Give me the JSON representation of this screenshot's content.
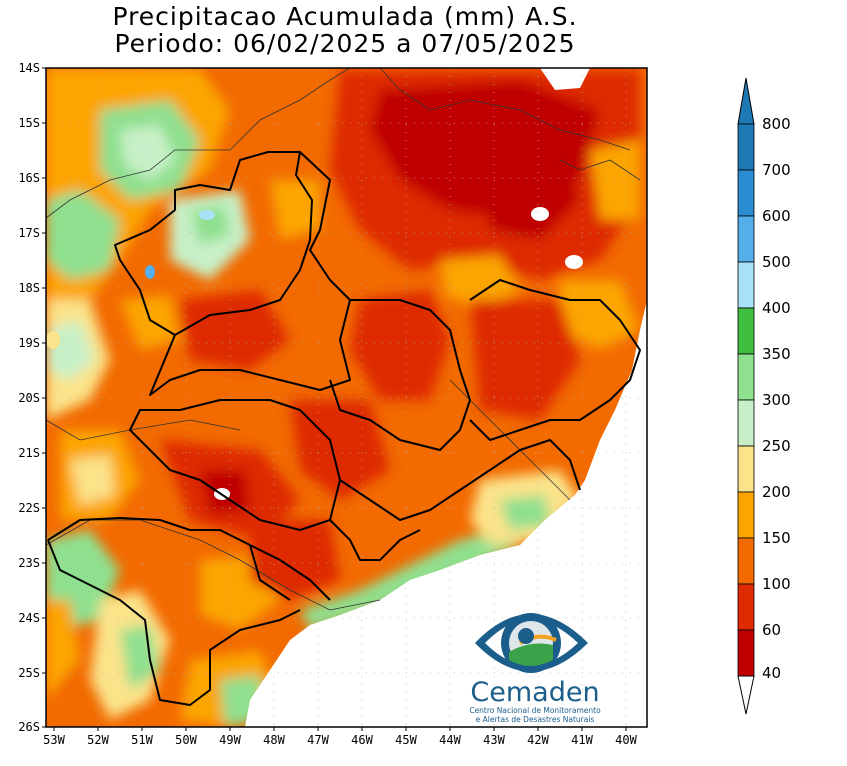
{
  "title": {
    "line1": "Precipitacao Acumulada (mm) A.S.",
    "line2": "Periodo: 06/02/2025 a 07/05/2025"
  },
  "axes": {
    "lat_labels": [
      "14S",
      "15S",
      "16S",
      "17S",
      "18S",
      "19S",
      "20S",
      "21S",
      "22S",
      "23S",
      "24S",
      "25S",
      "26S"
    ],
    "lon_labels": [
      "53W",
      "52W",
      "51W",
      "50W",
      "49W",
      "48W",
      "47W",
      "46W",
      "45W",
      "44W",
      "43W",
      "42W",
      "41W",
      "40W"
    ]
  },
  "legend": {
    "levels": [
      "800",
      "700",
      "600",
      "500",
      "400",
      "350",
      "300",
      "250",
      "200",
      "150",
      "100",
      "60",
      "40"
    ],
    "colors": [
      "#1e78b4",
      "#2a8dd2",
      "#54aeea",
      "#a9e2f8",
      "#3fbe3f",
      "#8fe08f",
      "#c8f0c8",
      "#fbe38a",
      "#fca500",
      "#f26a00",
      "#de2a00",
      "#c00000"
    ]
  },
  "logo": {
    "name": "Cemaden",
    "subtitle_line1": "Centro Nacional de Monitoramento",
    "subtitle_line2": "e Alertas de Desastres Naturais"
  },
  "colors": {
    "ocean": "#ffffff",
    "dominant_field": "#f26a00",
    "brand_blue": "#1b5e8c"
  }
}
